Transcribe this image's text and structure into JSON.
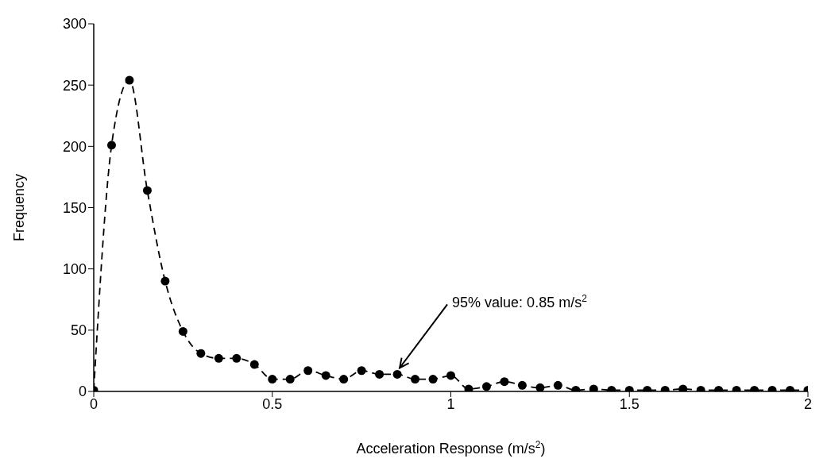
{
  "chart_data": {
    "type": "line",
    "xlabel": "Acceleration Response (m/s$^{2}$)",
    "ylabel": "Frequency",
    "x": [
      0,
      0.05,
      0.1,
      0.15,
      0.2,
      0.25,
      0.3,
      0.35,
      0.4,
      0.45,
      0.5,
      0.55,
      0.6,
      0.65,
      0.7,
      0.75,
      0.8,
      0.85,
      0.9,
      0.95,
      1,
      1.05,
      1.1,
      1.15,
      1.2,
      1.25,
      1.3,
      1.35,
      1.4,
      1.45,
      1.5,
      1.55,
      1.6,
      1.65,
      1.7,
      1.75,
      1.8,
      1.85,
      1.9,
      1.95,
      2
    ],
    "series": [
      {
        "color": "#000000",
        "values": [
          1,
          201,
          254,
          164,
          90,
          49,
          31,
          27,
          27,
          22,
          10,
          10,
          17,
          13,
          10,
          17,
          14,
          14,
          10,
          10,
          13,
          2,
          4,
          8,
          5,
          3,
          5,
          1,
          2,
          1,
          1,
          1,
          1,
          2,
          1,
          1,
          1,
          1,
          1,
          1,
          1
        ]
      }
    ],
    "xlim": [
      0,
      2
    ],
    "xticks": [
      0,
      0.5,
      1,
      1.5,
      2
    ],
    "ylim": [
      0,
      300
    ],
    "yticks": [
      0,
      50,
      100,
      150,
      200,
      250,
      300
    ],
    "grid": false,
    "marker": "circle",
    "line_style": "dashed",
    "annotations": [
      {
        "text": "95% value: 0.85 m/s$^{2}$",
        "x": 0.85,
        "y": 14
      }
    ]
  }
}
